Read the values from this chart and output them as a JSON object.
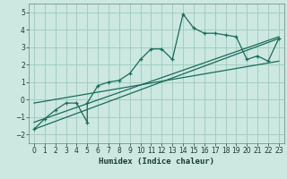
{
  "xlabel": "Humidex (Indice chaleur)",
  "xlim": [
    -0.5,
    23.5
  ],
  "ylim": [
    -2.5,
    5.5
  ],
  "xticks": [
    0,
    1,
    2,
    3,
    4,
    5,
    6,
    7,
    8,
    9,
    10,
    11,
    12,
    13,
    14,
    15,
    16,
    17,
    18,
    19,
    20,
    21,
    22,
    23
  ],
  "yticks": [
    -2,
    -1,
    0,
    1,
    2,
    3,
    4,
    5
  ],
  "bg_color": "#cce8e0",
  "grid_color": "#99ccbb",
  "line_color": "#1a6b5a",
  "data_line": {
    "x": [
      0,
      1,
      2,
      3,
      4,
      5,
      5,
      6,
      7,
      8,
      9,
      10,
      11,
      12,
      13,
      14,
      15,
      16,
      17,
      18,
      19,
      20,
      21,
      22,
      23
    ],
    "y": [
      -1.7,
      -1.1,
      -0.6,
      -0.2,
      -0.2,
      -1.3,
      -0.2,
      0.8,
      1.0,
      1.1,
      1.5,
      2.3,
      2.9,
      2.9,
      2.3,
      4.9,
      4.1,
      3.8,
      3.8,
      3.7,
      3.6,
      2.3,
      2.5,
      2.2,
      3.5
    ]
  },
  "trend_line1": {
    "x": [
      0,
      23
    ],
    "y": [
      -1.7,
      3.5
    ]
  },
  "trend_line2": {
    "x": [
      0,
      23
    ],
    "y": [
      -1.3,
      3.6
    ]
  },
  "trend_line3": {
    "x": [
      0,
      23
    ],
    "y": [
      -0.2,
      2.2
    ]
  },
  "xlabel_fontsize": 6.5,
  "tick_fontsize": 5.5
}
